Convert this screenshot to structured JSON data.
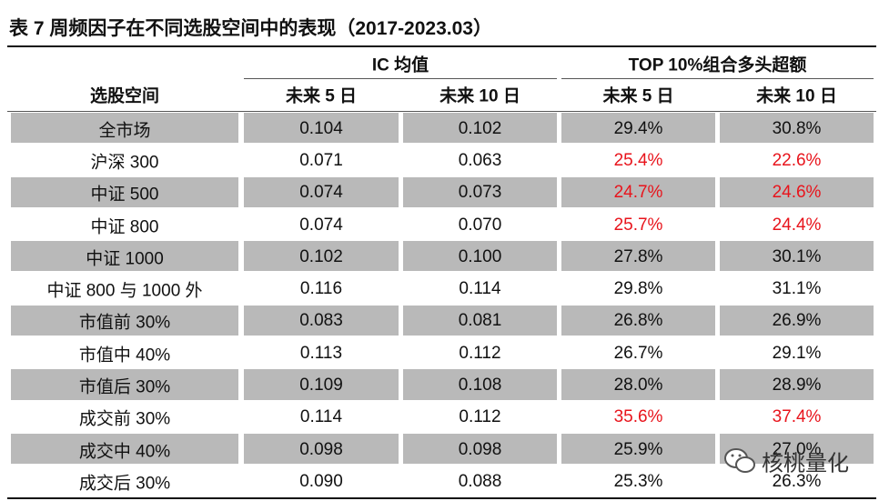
{
  "title": "表 7 周频因子在不同选股空间中的表现（2017-2023.03）",
  "table": {
    "group_headers": [
      "IC 均值",
      "TOP 10%组合多头超额"
    ],
    "headers": [
      "选股空间",
      "未来 5 日",
      "未来 10 日",
      "未来 5 日",
      "未来 10 日"
    ],
    "rows": [
      [
        "全市场",
        "0.104",
        "0.102",
        "29.4%",
        "30.8%"
      ],
      [
        "沪深 300",
        "0.071",
        "0.063",
        "25.4%",
        "22.6%"
      ],
      [
        "中证 500",
        "0.074",
        "0.073",
        "24.7%",
        "24.6%"
      ],
      [
        "中证 800",
        "0.074",
        "0.070",
        "25.7%",
        "24.4%"
      ],
      [
        "中证 1000",
        "0.102",
        "0.100",
        "27.8%",
        "30.1%"
      ],
      [
        "中证 800 与 1000 外",
        "0.116",
        "0.114",
        "29.8%",
        "31.1%"
      ],
      [
        "市值前 30%",
        "0.083",
        "0.081",
        "26.8%",
        "26.9%"
      ],
      [
        "市值中 40%",
        "0.113",
        "0.112",
        "26.7%",
        "29.1%"
      ],
      [
        "市值后 30%",
        "0.109",
        "0.108",
        "28.0%",
        "28.9%"
      ],
      [
        "成交前 30%",
        "0.114",
        "0.112",
        "35.6%",
        "37.4%"
      ],
      [
        "成交中 40%",
        "0.098",
        "0.098",
        "25.9%",
        "27.0%"
      ],
      [
        "成交后 30%",
        "0.090",
        "0.088",
        "25.3%",
        "26.3%"
      ]
    ],
    "highlight": {
      "color": "#e8141c",
      "cells": [
        [
          1,
          3
        ],
        [
          1,
          4
        ],
        [
          2,
          3
        ],
        [
          2,
          4
        ],
        [
          3,
          3
        ],
        [
          3,
          4
        ],
        [
          9,
          3
        ],
        [
          9,
          4
        ]
      ]
    },
    "stripe_color": "#b9b9b9"
  },
  "watermark": "核桃量化"
}
